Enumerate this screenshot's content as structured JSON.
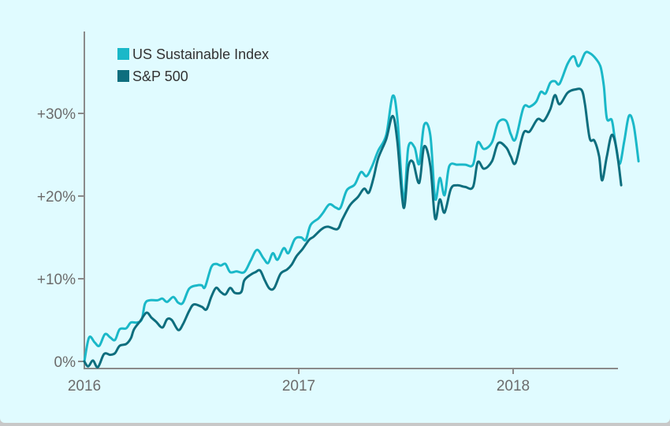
{
  "chart_data": {
    "type": "line",
    "title": "",
    "xlabel": "",
    "ylabel": "",
    "xlim": [
      2016.0,
      2018.49
    ],
    "ylim": [
      0,
      40
    ],
    "grid": false,
    "legend": {
      "placement": "top-left",
      "entries": [
        "US Sustainable Index",
        "S&P 500"
      ]
    },
    "x_ticks": [
      {
        "value": 2016,
        "label": "2016"
      },
      {
        "value": 2017,
        "label": "2017"
      },
      {
        "value": 2018,
        "label": "2018"
      }
    ],
    "y_ticks": [
      {
        "value": 0,
        "label": "0%"
      },
      {
        "value": 10,
        "label": "+10%"
      },
      {
        "value": 20,
        "label": "+20%"
      },
      {
        "value": 30,
        "label": "+30%"
      }
    ],
    "series": [
      {
        "name": "US Sustainable Index",
        "color": "#1ab8c8",
        "points": [
          [
            2016.0,
            0.0
          ],
          [
            2016.022,
            2.9
          ],
          [
            2016.048,
            2.3
          ],
          [
            2016.07,
            1.9
          ],
          [
            2016.096,
            3.3
          ],
          [
            2016.121,
            2.9
          ],
          [
            2016.143,
            2.6
          ],
          [
            2016.165,
            3.9
          ],
          [
            2016.195,
            4.0
          ],
          [
            2016.217,
            4.7
          ],
          [
            2016.246,
            4.7
          ],
          [
            2016.268,
            5.1
          ],
          [
            2016.283,
            7.0
          ],
          [
            2016.305,
            7.4
          ],
          [
            2016.342,
            7.4
          ],
          [
            2016.364,
            7.6
          ],
          [
            2016.386,
            7.2
          ],
          [
            2016.415,
            7.8
          ],
          [
            2016.438,
            7.1
          ],
          [
            2016.46,
            7.1
          ],
          [
            2016.489,
            8.8
          ],
          [
            2016.526,
            9.2
          ],
          [
            2016.548,
            9.2
          ],
          [
            2016.563,
            9.0
          ],
          [
            2016.592,
            11.4
          ],
          [
            2016.614,
            11.8
          ],
          [
            2016.636,
            11.6
          ],
          [
            2016.658,
            11.8
          ],
          [
            2016.68,
            10.8
          ],
          [
            2016.71,
            10.9
          ],
          [
            2016.746,
            10.8
          ],
          [
            2016.776,
            12.2
          ],
          [
            2016.805,
            13.5
          ],
          [
            2016.835,
            12.5
          ],
          [
            2016.857,
            11.9
          ],
          [
            2016.879,
            13.1
          ],
          [
            2016.901,
            12.3
          ],
          [
            2016.93,
            13.7
          ],
          [
            2016.952,
            13.1
          ],
          [
            2016.982,
            14.8
          ],
          [
            2017.011,
            15.0
          ],
          [
            2017.033,
            14.7
          ],
          [
            2017.055,
            16.5
          ],
          [
            2017.092,
            17.3
          ],
          [
            2017.114,
            18.0
          ],
          [
            2017.143,
            19.0
          ],
          [
            2017.173,
            18.6
          ],
          [
            2017.195,
            18.6
          ],
          [
            2017.224,
            20.7
          ],
          [
            2017.261,
            21.4
          ],
          [
            2017.29,
            22.9
          ],
          [
            2017.316,
            22.4
          ],
          [
            2017.342,
            23.6
          ],
          [
            2017.371,
            25.5
          ],
          [
            2017.408,
            27.4
          ],
          [
            2017.438,
            32.1
          ],
          [
            2017.46,
            29.4
          ],
          [
            2017.489,
            19.5
          ],
          [
            2017.511,
            25.9
          ],
          [
            2017.54,
            25.9
          ],
          [
            2017.562,
            23.9
          ],
          [
            2017.585,
            28.6
          ],
          [
            2017.614,
            27.3
          ],
          [
            2017.636,
            19.7
          ],
          [
            2017.658,
            22.2
          ],
          [
            2017.68,
            20.1
          ],
          [
            2017.702,
            23.6
          ],
          [
            2017.739,
            23.8
          ],
          [
            2017.776,
            23.8
          ],
          [
            2017.813,
            23.8
          ],
          [
            2017.835,
            26.5
          ],
          [
            2017.864,
            25.7
          ],
          [
            2017.901,
            26.5
          ],
          [
            2017.93,
            28.9
          ],
          [
            2017.967,
            29.1
          ],
          [
            2017.989,
            27.5
          ],
          [
            2018.011,
            26.9
          ],
          [
            2018.048,
            30.7
          ],
          [
            2018.077,
            30.8
          ],
          [
            2018.107,
            31.4
          ],
          [
            2018.129,
            32.6
          ],
          [
            2018.151,
            32.4
          ],
          [
            2018.173,
            33.7
          ],
          [
            2018.195,
            33.9
          ],
          [
            2018.217,
            33.6
          ],
          [
            2018.254,
            36.0
          ],
          [
            2018.283,
            36.9
          ],
          [
            2018.305,
            35.7
          ],
          [
            2018.335,
            37.3
          ],
          [
            2018.357,
            37.3
          ],
          [
            2018.386,
            36.6
          ],
          [
            2018.408,
            35.6
          ],
          [
            2018.423,
            33.3
          ],
          [
            2018.437,
            29.4
          ],
          [
            2018.46,
            29.2
          ],
          [
            2018.474,
            27.0
          ],
          [
            2018.496,
            23.9
          ],
          [
            2018.518,
            26.6
          ],
          [
            2018.54,
            29.7
          ],
          [
            2018.562,
            28.6
          ],
          [
            2018.585,
            24.2
          ]
        ]
      },
      {
        "name": "S&P 500",
        "color": "#0e6e7e",
        "points": [
          [
            2016.0,
            0.0
          ],
          [
            2016.018,
            -0.6
          ],
          [
            2016.04,
            0.1
          ],
          [
            2016.063,
            -0.7
          ],
          [
            2016.092,
            0.9
          ],
          [
            2016.121,
            0.8
          ],
          [
            2016.143,
            1.0
          ],
          [
            2016.165,
            1.9
          ],
          [
            2016.195,
            2.1
          ],
          [
            2016.217,
            2.8
          ],
          [
            2016.232,
            3.9
          ],
          [
            2016.261,
            4.9
          ],
          [
            2016.29,
            5.9
          ],
          [
            2016.313,
            5.3
          ],
          [
            2016.335,
            4.8
          ],
          [
            2016.364,
            4.1
          ],
          [
            2016.386,
            5.1
          ],
          [
            2016.408,
            5.0
          ],
          [
            2016.438,
            3.8
          ],
          [
            2016.46,
            4.5
          ],
          [
            2016.489,
            6.1
          ],
          [
            2016.511,
            6.9
          ],
          [
            2016.548,
            6.6
          ],
          [
            2016.57,
            6.3
          ],
          [
            2016.592,
            7.8
          ],
          [
            2016.614,
            8.9
          ],
          [
            2016.636,
            8.4
          ],
          [
            2016.658,
            8.1
          ],
          [
            2016.68,
            8.9
          ],
          [
            2016.702,
            8.3
          ],
          [
            2016.732,
            8.4
          ],
          [
            2016.746,
            9.8
          ],
          [
            2016.776,
            10.5
          ],
          [
            2016.798,
            10.8
          ],
          [
            2016.82,
            11.0
          ],
          [
            2016.842,
            9.8
          ],
          [
            2016.864,
            8.8
          ],
          [
            2016.886,
            8.9
          ],
          [
            2016.915,
            10.6
          ],
          [
            2016.945,
            11.1
          ],
          [
            2016.967,
            11.7
          ],
          [
            2016.989,
            12.7
          ],
          [
            2017.018,
            13.6
          ],
          [
            2017.048,
            14.7
          ],
          [
            2017.07,
            15.1
          ],
          [
            2017.107,
            16.0
          ],
          [
            2017.136,
            16.3
          ],
          [
            2017.18,
            16.0
          ],
          [
            2017.202,
            17.1
          ],
          [
            2017.239,
            18.9
          ],
          [
            2017.276,
            19.9
          ],
          [
            2017.305,
            20.9
          ],
          [
            2017.327,
            20.4
          ],
          [
            2017.349,
            22.2
          ],
          [
            2017.371,
            24.6
          ],
          [
            2017.408,
            26.9
          ],
          [
            2017.438,
            29.7
          ],
          [
            2017.46,
            26.6
          ],
          [
            2017.489,
            18.6
          ],
          [
            2017.511,
            23.5
          ],
          [
            2017.533,
            24.1
          ],
          [
            2017.562,
            21.6
          ],
          [
            2017.585,
            26.0
          ],
          [
            2017.614,
            23.6
          ],
          [
            2017.636,
            17.3
          ],
          [
            2017.658,
            19.6
          ],
          [
            2017.68,
            18.0
          ],
          [
            2017.71,
            20.9
          ],
          [
            2017.739,
            21.3
          ],
          [
            2017.776,
            21.1
          ],
          [
            2017.813,
            21.1
          ],
          [
            2017.835,
            24.1
          ],
          [
            2017.864,
            23.3
          ],
          [
            2017.901,
            24.2
          ],
          [
            2017.93,
            26.4
          ],
          [
            2017.967,
            25.9
          ],
          [
            2017.989,
            24.8
          ],
          [
            2018.011,
            24.0
          ],
          [
            2018.048,
            27.6
          ],
          [
            2018.077,
            27.8
          ],
          [
            2018.114,
            29.3
          ],
          [
            2018.143,
            29.1
          ],
          [
            2018.173,
            30.5
          ],
          [
            2018.195,
            32.2
          ],
          [
            2018.217,
            31.1
          ],
          [
            2018.254,
            32.5
          ],
          [
            2018.29,
            32.9
          ],
          [
            2018.32,
            32.8
          ],
          [
            2018.335,
            31.1
          ],
          [
            2018.357,
            27.0
          ],
          [
            2018.379,
            26.7
          ],
          [
            2018.401,
            24.8
          ],
          [
            2018.415,
            21.9
          ],
          [
            2018.437,
            24.8
          ],
          [
            2018.46,
            27.4
          ],
          [
            2018.482,
            25.7
          ],
          [
            2018.504,
            21.3
          ]
        ]
      }
    ]
  }
}
